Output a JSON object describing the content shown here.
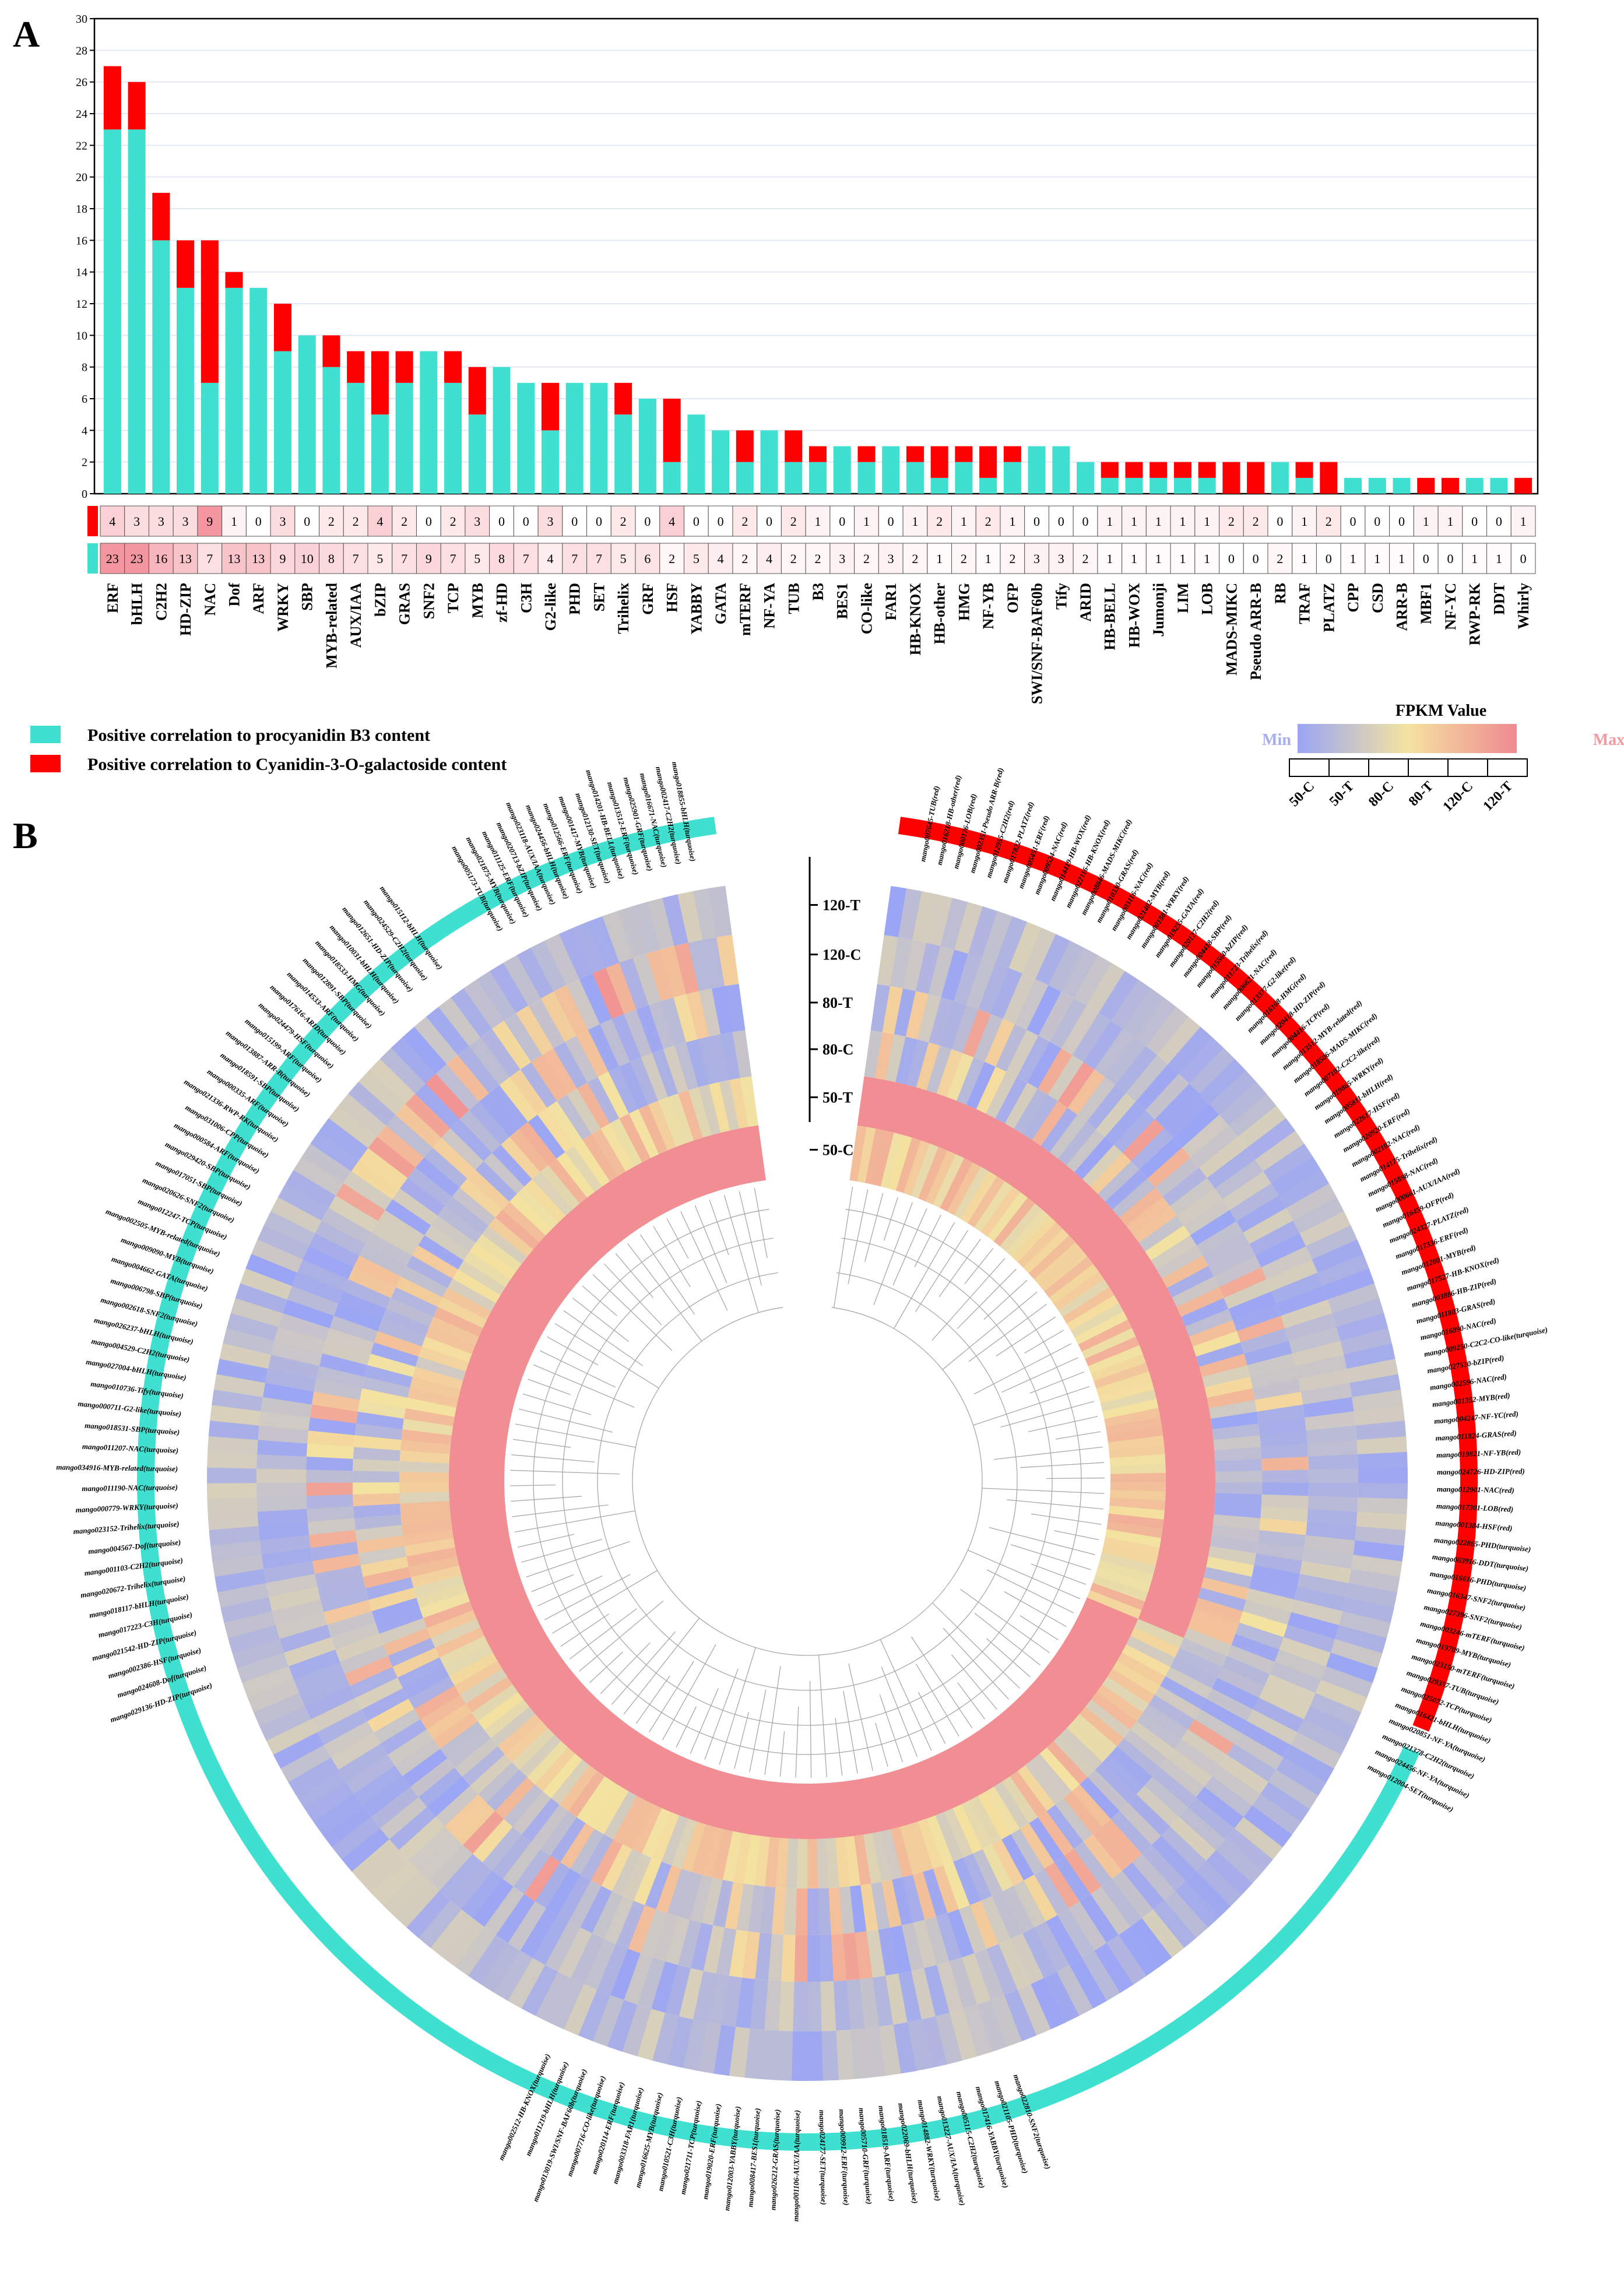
{
  "panels": {
    "a": "A",
    "b": "B"
  },
  "colors": {
    "turquoise": "#40E0D0",
    "red": "#FF0000",
    "min": "#9aa5f5",
    "mid": "#f4e3a0",
    "max": "#f08a92"
  },
  "chart_data": [
    {
      "type": "bar",
      "stacked": true,
      "categories": [
        "ERF",
        "bHLH",
        "C2H2",
        "HD-ZIP",
        "NAC",
        "Dof",
        "ARF",
        "WRKY",
        "SBP",
        "MYB-related",
        "AUX/IAA",
        "bZIP",
        "GRAS",
        "SNF2",
        "TCP",
        "MYB",
        "zf-HD",
        "C3H",
        "G2-like",
        "PHD",
        "SET",
        "Trihelix",
        "GRF",
        "HSF",
        "YABBY",
        "GATA",
        "mTERF",
        "NF-YA",
        "TUB",
        "B3",
        "BES1",
        "CO-like",
        "FAR1",
        "HB-KNOX",
        "HB-other",
        "HMG",
        "NF-YB",
        "OFP",
        "SWI/SNF-BAF60b",
        "Tify",
        "ARID",
        "HB-BELL",
        "HB-WOX",
        "Jumonji",
        "LIM",
        "LOB",
        "MADS-MIKC",
        "Pseudo ARR-B",
        "RB",
        "TRAF",
        "PLATZ",
        "CPP",
        "CSD",
        "ARR-B",
        "MBF1",
        "NF-YC",
        "RWP-RK",
        "DDT",
        "Whirly"
      ],
      "series": [
        {
          "name": "Positive correlation to procyanidin B3 content",
          "color": "#40E0D0",
          "values": [
            23,
            23,
            16,
            13,
            7,
            13,
            13,
            9,
            10,
            8,
            7,
            5,
            7,
            9,
            7,
            5,
            8,
            7,
            4,
            7,
            7,
            5,
            6,
            2,
            5,
            4,
            2,
            4,
            2,
            2,
            3,
            2,
            3,
            2,
            1,
            2,
            1,
            2,
            3,
            3,
            2,
            1,
            1,
            1,
            1,
            1,
            0,
            0,
            2,
            1,
            0,
            1,
            1,
            1,
            0,
            0,
            1,
            1,
            0
          ]
        },
        {
          "name": "Positive correlation to Cyanidin-3-O-galactoside content",
          "color": "#FF0000",
          "values": [
            4,
            3,
            3,
            3,
            9,
            1,
            0,
            3,
            0,
            2,
            2,
            4,
            2,
            0,
            2,
            3,
            0,
            0,
            3,
            0,
            0,
            2,
            0,
            4,
            0,
            0,
            2,
            0,
            2,
            1,
            0,
            1,
            0,
            1,
            2,
            1,
            2,
            1,
            0,
            0,
            0,
            1,
            1,
            1,
            1,
            1,
            2,
            2,
            0,
            1,
            2,
            0,
            0,
            0,
            1,
            1,
            0,
            0,
            1
          ]
        }
      ],
      "ylim": [
        0,
        30
      ],
      "yticks": [
        "0",
        "2",
        "4",
        "6",
        "8",
        "10",
        "12",
        "14",
        "16",
        "18",
        "20",
        "22",
        "24",
        "26",
        "28",
        "30"
      ],
      "grid": true
    },
    {
      "type": "heatmap",
      "layout": "circular",
      "rings": [
        "120-T",
        "120-C",
        "80-T",
        "80-C",
        "50-T",
        "50-C"
      ],
      "legend": {
        "title": "FPKM Value",
        "min": "Min",
        "max": "Max",
        "samples": [
          "50-C",
          "50-T",
          "80-C",
          "80-T",
          "120-C",
          "120-T"
        ]
      }
    }
  ],
  "ring_genes": {
    "right": [
      "mango007645-TUB(red)",
      "mango016218-HB-other(red)",
      "mango000176-LOB(red)",
      "mango002351-Pseudo ARR-B(red)",
      "mango012955-C2H2(red)",
      "mango017822-PLATZ(red)",
      "mango005451-ERF(red)",
      "mango009524-NAC(red)",
      "mango014419-HB-WOX(red)",
      "mango022116-HB-KNOX(red)",
      "mango008846-MADS-MIKC(red)",
      "mango010330-GRAS(red)",
      "mango003116-NAC(red)",
      "mango021402-MYB(red)",
      "mango001881-WRKY(red)",
      "mango019255-GATA(red)",
      "mango020127-C2H2(red)",
      "mango004418-SBP(red)",
      "mango015560-bZIP(red)",
      "mango011723-Trihelix(red)",
      "mango006621-NAC(red)",
      "mango013377-G2-like(red)",
      "mango016108-HMG(red)",
      "mango020418-HD-ZIP(red)",
      "mango004416-TCP(red)",
      "mango013512-MYB-related(red)",
      "mango018506-MADS-MIKC(red)",
      "mango007102-C2C2-like(red)",
      "mango019865-WRKY(red)",
      "mango005811-bHLH(red)",
      "mango022617-HSF(red)",
      "mango020920-ERF(red)",
      "mango002102-NAC(red)",
      "mango014175-Trihelix(red)",
      "mango015898-NAC(red)",
      "mango000661-AUX/IAA(red)",
      "mango016459-OFP(red)",
      "mango024327-PLATZ(red)",
      "mango017336-ERF(red)",
      "mango012801-MYB(red)",
      "mango017527-HB-KNOX(red)",
      "mango003886-HB-ZIP(red)",
      "mango011803-GRAS(red)",
      "mango016890-NAC(red)",
      "mango009250-C2C2-CO-like(turquoise)",
      "mango027510-bZIP(red)",
      "mango002596-NAC(red)",
      "mango001352-MYB(red)",
      "mango004247-NF-YC(red)",
      "mango011824-GRAS(red)",
      "mango019821-NF-YB(red)",
      "mango024726-HD-ZIP(red)",
      "mango012901-NAC(red)",
      "mango017301-LOB(red)",
      "mango001384-HSF(red)",
      "mango022865-PHD(turquoise)",
      "mango003916-DDT(turquoise)",
      "mango016616-PHD(turquoise)",
      "mango016347-SNF2(turquoise)",
      "mango027396-SNF2(turquoise)",
      "mango003246-mTERF(turquoise)",
      "mango019709-MYB(turquoise)",
      "mango023150-mTERF(turquoise)",
      "mango029357-TUB(turquoise)",
      "mango025072-TCP(turquoise)",
      "mango016421-bHLH(turquoise)",
      "mango020851-NF-YA(turquoise)",
      "mango021378-C2H2(turquoise)",
      "mango024456-NF-YA(turquoise)",
      "mango012004-SET(turquoise)"
    ],
    "left": [
      "mango029136-HD-ZIP(turquoise)",
      "mango024608-Dof(turquoise)",
      "mango002386-HSF(turquoise)",
      "mango021542-HD-ZIP(turquoise)",
      "mango017223-C3H(turquoise)",
      "mango018117-bHLH(turquoise)",
      "mango020672-Trihelix(turquoise)",
      "mango001103-C2H2(turquoise)",
      "mango004567-Dof(turquoise)",
      "mango023152-Trihelix(turquoise)",
      "mango000779-WRKY(turquoise)",
      "mango011190-NAC(turquoise)",
      "mango034916-MYB-related(turquoise)",
      "mango011207-NAC(turquoise)",
      "mango018531-SBP(turquoise)",
      "mango000711-G2-like(turquoise)",
      "mango010736-Tify(turquoise)",
      "mango027004-bHLH(turquoise)",
      "mango004529-C2H2(turquoise)",
      "mango026237-bHLH(turquoise)",
      "mango002618-SNF2(turquoise)",
      "mango006798-SBP(turquoise)",
      "mango004662-GATA(turquoise)",
      "mango009090-MYB(turquoise)",
      "mango002505-MYB-related(turquoise)",
      "mango012247-TCP(turquoise)",
      "mango020626-SNF2(turquoise)",
      "mango017051-SBP(turquoise)",
      "mango029420-SBP(turquoise)",
      "mango000584-ARF(turquoise)",
      "mango031006-CPP(turquoise)",
      "mango021336-RWP-RK(turquoise)",
      "mango000335-ARF(turquoise)",
      "mango018591-SBP(turquoise)",
      "mango013887-ARR-B(turquoise)",
      "mango015199-ARF(turquoise)",
      "mango024479-HSF(turquoise)",
      "mango017616-ARID(turquoise)",
      "mango014533-ARF(turquoise)",
      "mango012891-SBP(turquoise)",
      "mango018533-HMG(turquoise)",
      "mango010031-bHLH(turquoise)",
      "mango012651-HD-ZIP(turquoise)",
      "mango024529-C2H2(turquoise)",
      "mango015112-bHLH(turquoise)"
    ],
    "top": [
      "mango005173-TUB(turquoise)",
      "mango021875-MYB(turquoise)",
      "mango011125-ERF(turquoise)",
      "mango020713-bZIP(turquoise)",
      "mango023118-AUX/IAA(turquoise)",
      "mango024456-bHLH(turquoise)",
      "mango012566-ERF(turquoise)",
      "mango001417-MYB(turquoise)",
      "mango012130-SET(turquoise)",
      "mango014201-HB-BELL(turquoise)",
      "mango013512-ERF(turquoise)",
      "mango025901-GRF(turquoise)",
      "mango016671-NAC(turquoise)",
      "mango002417-C2H2(turquoise)",
      "mango018855-bHLH(turquoise)"
    ],
    "bottom": [
      "mango022810-SNF2(turquoise)",
      "mango021105-PHD(turquoise)",
      "mango017416-YABBY(turquoise)",
      "mango005115-C2H2(turquoise)",
      "mango013227-AUX/IAA(turquoise)",
      "mango014882-WRKY(turquoise)",
      "mango022069-bHLH(turquoise)",
      "mango018519-ARF(turquoise)",
      "mango005710-GRF(turquoise)",
      "mango009912-ERF(turquoise)",
      "mango024177-SET(turquoise)",
      "mango001106-AUX/IAA(turquoise)",
      "mango026212-GRAS(turquoise)",
      "mango008417-BES1(turquoise)",
      "mango012003-YABBY(turquoise)",
      "mango019020-ERF(turquoise)",
      "mango021711-TCP(turquoise)",
      "mango010521-C3H(turquoise)",
      "mango016625-MYB(turquoise)",
      "mango003318-FAR1(turquoise)",
      "mango020114-ERF(turquoise)",
      "mango007716-CO-like(turquoise)",
      "mango013019-SWI/SNF-BAF60b(turquoise)",
      "mango011219-bHLH(turquoise)",
      "mango002512-HB-KNOX(turquoise)"
    ]
  }
}
